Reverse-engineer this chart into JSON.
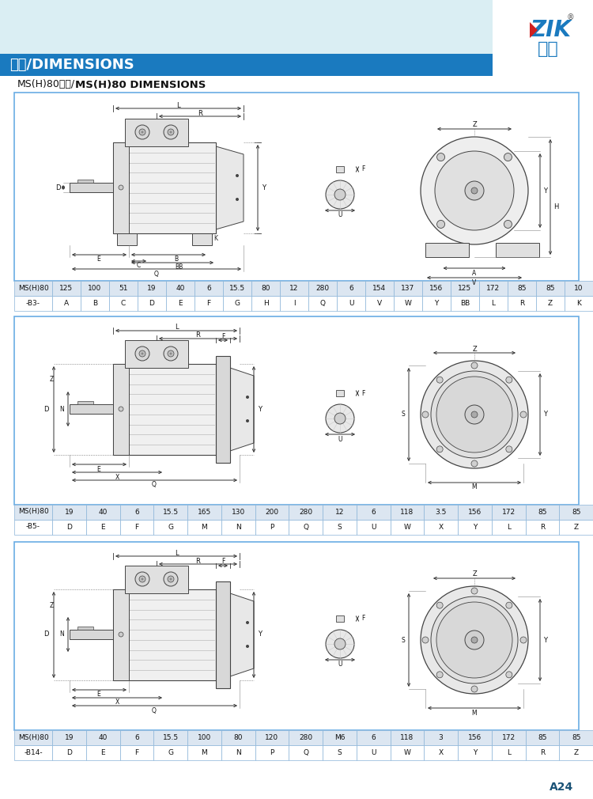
{
  "bg_top_color": "#daeef3",
  "bg_header_color": "#1a7abf",
  "title_cn": "尺寸/DIMENSIONS",
  "subtitle_cn": "MS(H)80尺寸/",
  "subtitle_en": "MS(H)80 DIMENSIONS",
  "page_num": "A24",
  "border_color": "#6aade4",
  "table_row1_bg": "#dce6f1",
  "table_row2_bg": "#ffffff",
  "lc": "#444444",
  "sections": [
    {
      "label1": "MS(H)80",
      "label2": "-B3-",
      "values": [
        "125",
        "100",
        "51",
        "19",
        "40",
        "6",
        "15.5",
        "80",
        "12",
        "280",
        "6",
        "154",
        "137",
        "156",
        "125",
        "172",
        "85",
        "85",
        "10"
      ],
      "headers": [
        "A",
        "B",
        "C",
        "D",
        "E",
        "F",
        "G",
        "H",
        "I",
        "Q",
        "U",
        "V",
        "W",
        "Y",
        "BB",
        "L",
        "R",
        "Z",
        "K"
      ],
      "type": "B3"
    },
    {
      "label1": "MS(H)80",
      "label2": "-B5-",
      "values": [
        "19",
        "40",
        "6",
        "15.5",
        "165",
        "130",
        "200",
        "280",
        "12",
        "6",
        "118",
        "3.5",
        "156",
        "172",
        "85",
        "85",
        "",
        "",
        ""
      ],
      "headers": [
        "D",
        "E",
        "F",
        "G",
        "M",
        "N",
        "P",
        "Q",
        "S",
        "U",
        "W",
        "X",
        "Y",
        "L",
        "R",
        "Z",
        "",
        "",
        ""
      ],
      "type": "B5"
    },
    {
      "label1": "MS(H)80",
      "label2": "-B14-",
      "values": [
        "19",
        "40",
        "6",
        "15.5",
        "100",
        "80",
        "120",
        "280",
        "M6",
        "6",
        "118",
        "3",
        "156",
        "172",
        "85",
        "85",
        "",
        "",
        ""
      ],
      "headers": [
        "D",
        "E",
        "F",
        "G",
        "M",
        "N",
        "P",
        "Q",
        "S",
        "U",
        "W",
        "X",
        "Y",
        "L",
        "R",
        "Z",
        "",
        "",
        ""
      ],
      "type": "B14"
    }
  ]
}
